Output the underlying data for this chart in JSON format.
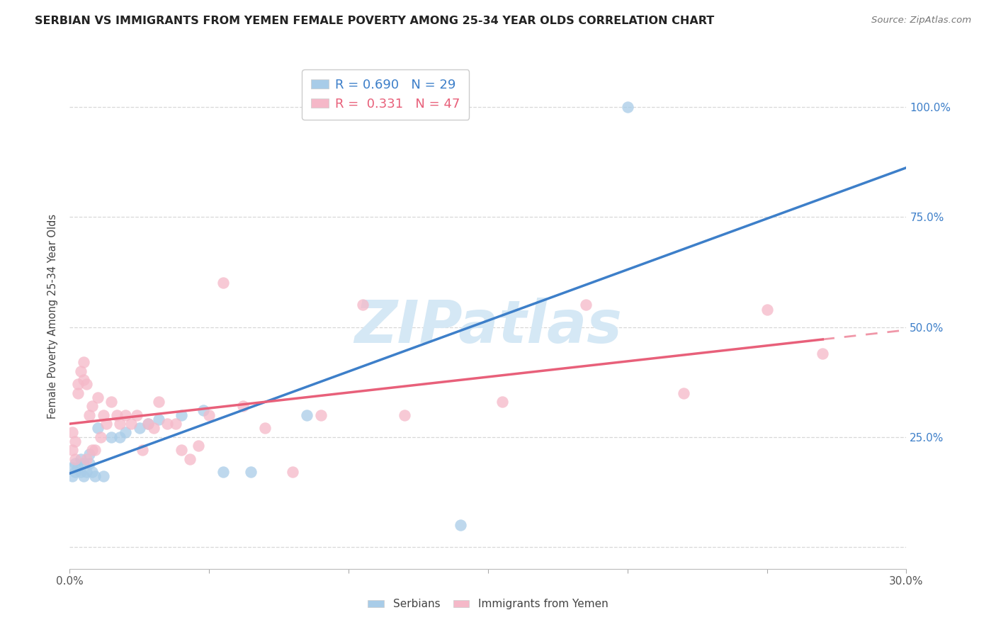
{
  "title": "SERBIAN VS IMMIGRANTS FROM YEMEN FEMALE POVERTY AMONG 25-34 YEAR OLDS CORRELATION CHART",
  "source": "Source: ZipAtlas.com",
  "ylabel": "Female Poverty Among 25-34 Year Olds",
  "xlim": [
    0.0,
    0.3
  ],
  "ylim": [
    -0.05,
    1.1
  ],
  "ytick_vals": [
    0.0,
    0.25,
    0.5,
    0.75,
    1.0
  ],
  "ytick_right_labels": [
    "",
    "25.0%",
    "50.0%",
    "75.0%",
    "100.0%"
  ],
  "xtick_vals": [
    0.0,
    0.05,
    0.1,
    0.15,
    0.2,
    0.25,
    0.3
  ],
  "xtick_labels": [
    "0.0%",
    "",
    "",
    "",
    "",
    "",
    "30.0%"
  ],
  "serbian_R": 0.69,
  "serbian_N": 29,
  "yemen_R": 0.331,
  "yemen_N": 47,
  "serbian_color": "#a8cce8",
  "yemen_color": "#f5b8c8",
  "serbian_line_color": "#3d7fc9",
  "yemen_line_color": "#e8607a",
  "watermark_text": "ZIPatlas",
  "watermark_color": "#d5e8f5",
  "background_color": "#ffffff",
  "label_color": "#3d7fc9",
  "grid_color": "#d8d8d8",
  "serbian_x": [
    0.001,
    0.001,
    0.002,
    0.002,
    0.003,
    0.004,
    0.004,
    0.005,
    0.005,
    0.006,
    0.007,
    0.007,
    0.008,
    0.009,
    0.01,
    0.012,
    0.015,
    0.018,
    0.02,
    0.025,
    0.028,
    0.032,
    0.04,
    0.048,
    0.055,
    0.065,
    0.085,
    0.14,
    0.2
  ],
  "serbian_y": [
    0.16,
    0.18,
    0.17,
    0.19,
    0.18,
    0.17,
    0.2,
    0.16,
    0.19,
    0.17,
    0.19,
    0.21,
    0.17,
    0.16,
    0.27,
    0.16,
    0.25,
    0.25,
    0.26,
    0.27,
    0.28,
    0.29,
    0.3,
    0.31,
    0.17,
    0.17,
    0.3,
    0.05,
    1.0
  ],
  "yemen_x": [
    0.001,
    0.001,
    0.002,
    0.002,
    0.003,
    0.003,
    0.004,
    0.005,
    0.005,
    0.006,
    0.006,
    0.007,
    0.008,
    0.008,
    0.009,
    0.01,
    0.011,
    0.012,
    0.013,
    0.015,
    0.017,
    0.018,
    0.02,
    0.022,
    0.024,
    0.026,
    0.028,
    0.03,
    0.032,
    0.035,
    0.038,
    0.04,
    0.043,
    0.046,
    0.05,
    0.055,
    0.062,
    0.07,
    0.08,
    0.09,
    0.105,
    0.12,
    0.155,
    0.185,
    0.22,
    0.25,
    0.27
  ],
  "yemen_y": [
    0.22,
    0.26,
    0.2,
    0.24,
    0.35,
    0.37,
    0.4,
    0.42,
    0.38,
    0.2,
    0.37,
    0.3,
    0.22,
    0.32,
    0.22,
    0.34,
    0.25,
    0.3,
    0.28,
    0.33,
    0.3,
    0.28,
    0.3,
    0.28,
    0.3,
    0.22,
    0.28,
    0.27,
    0.33,
    0.28,
    0.28,
    0.22,
    0.2,
    0.23,
    0.3,
    0.6,
    0.32,
    0.27,
    0.17,
    0.3,
    0.55,
    0.3,
    0.33,
    0.55,
    0.35,
    0.54,
    0.44
  ]
}
